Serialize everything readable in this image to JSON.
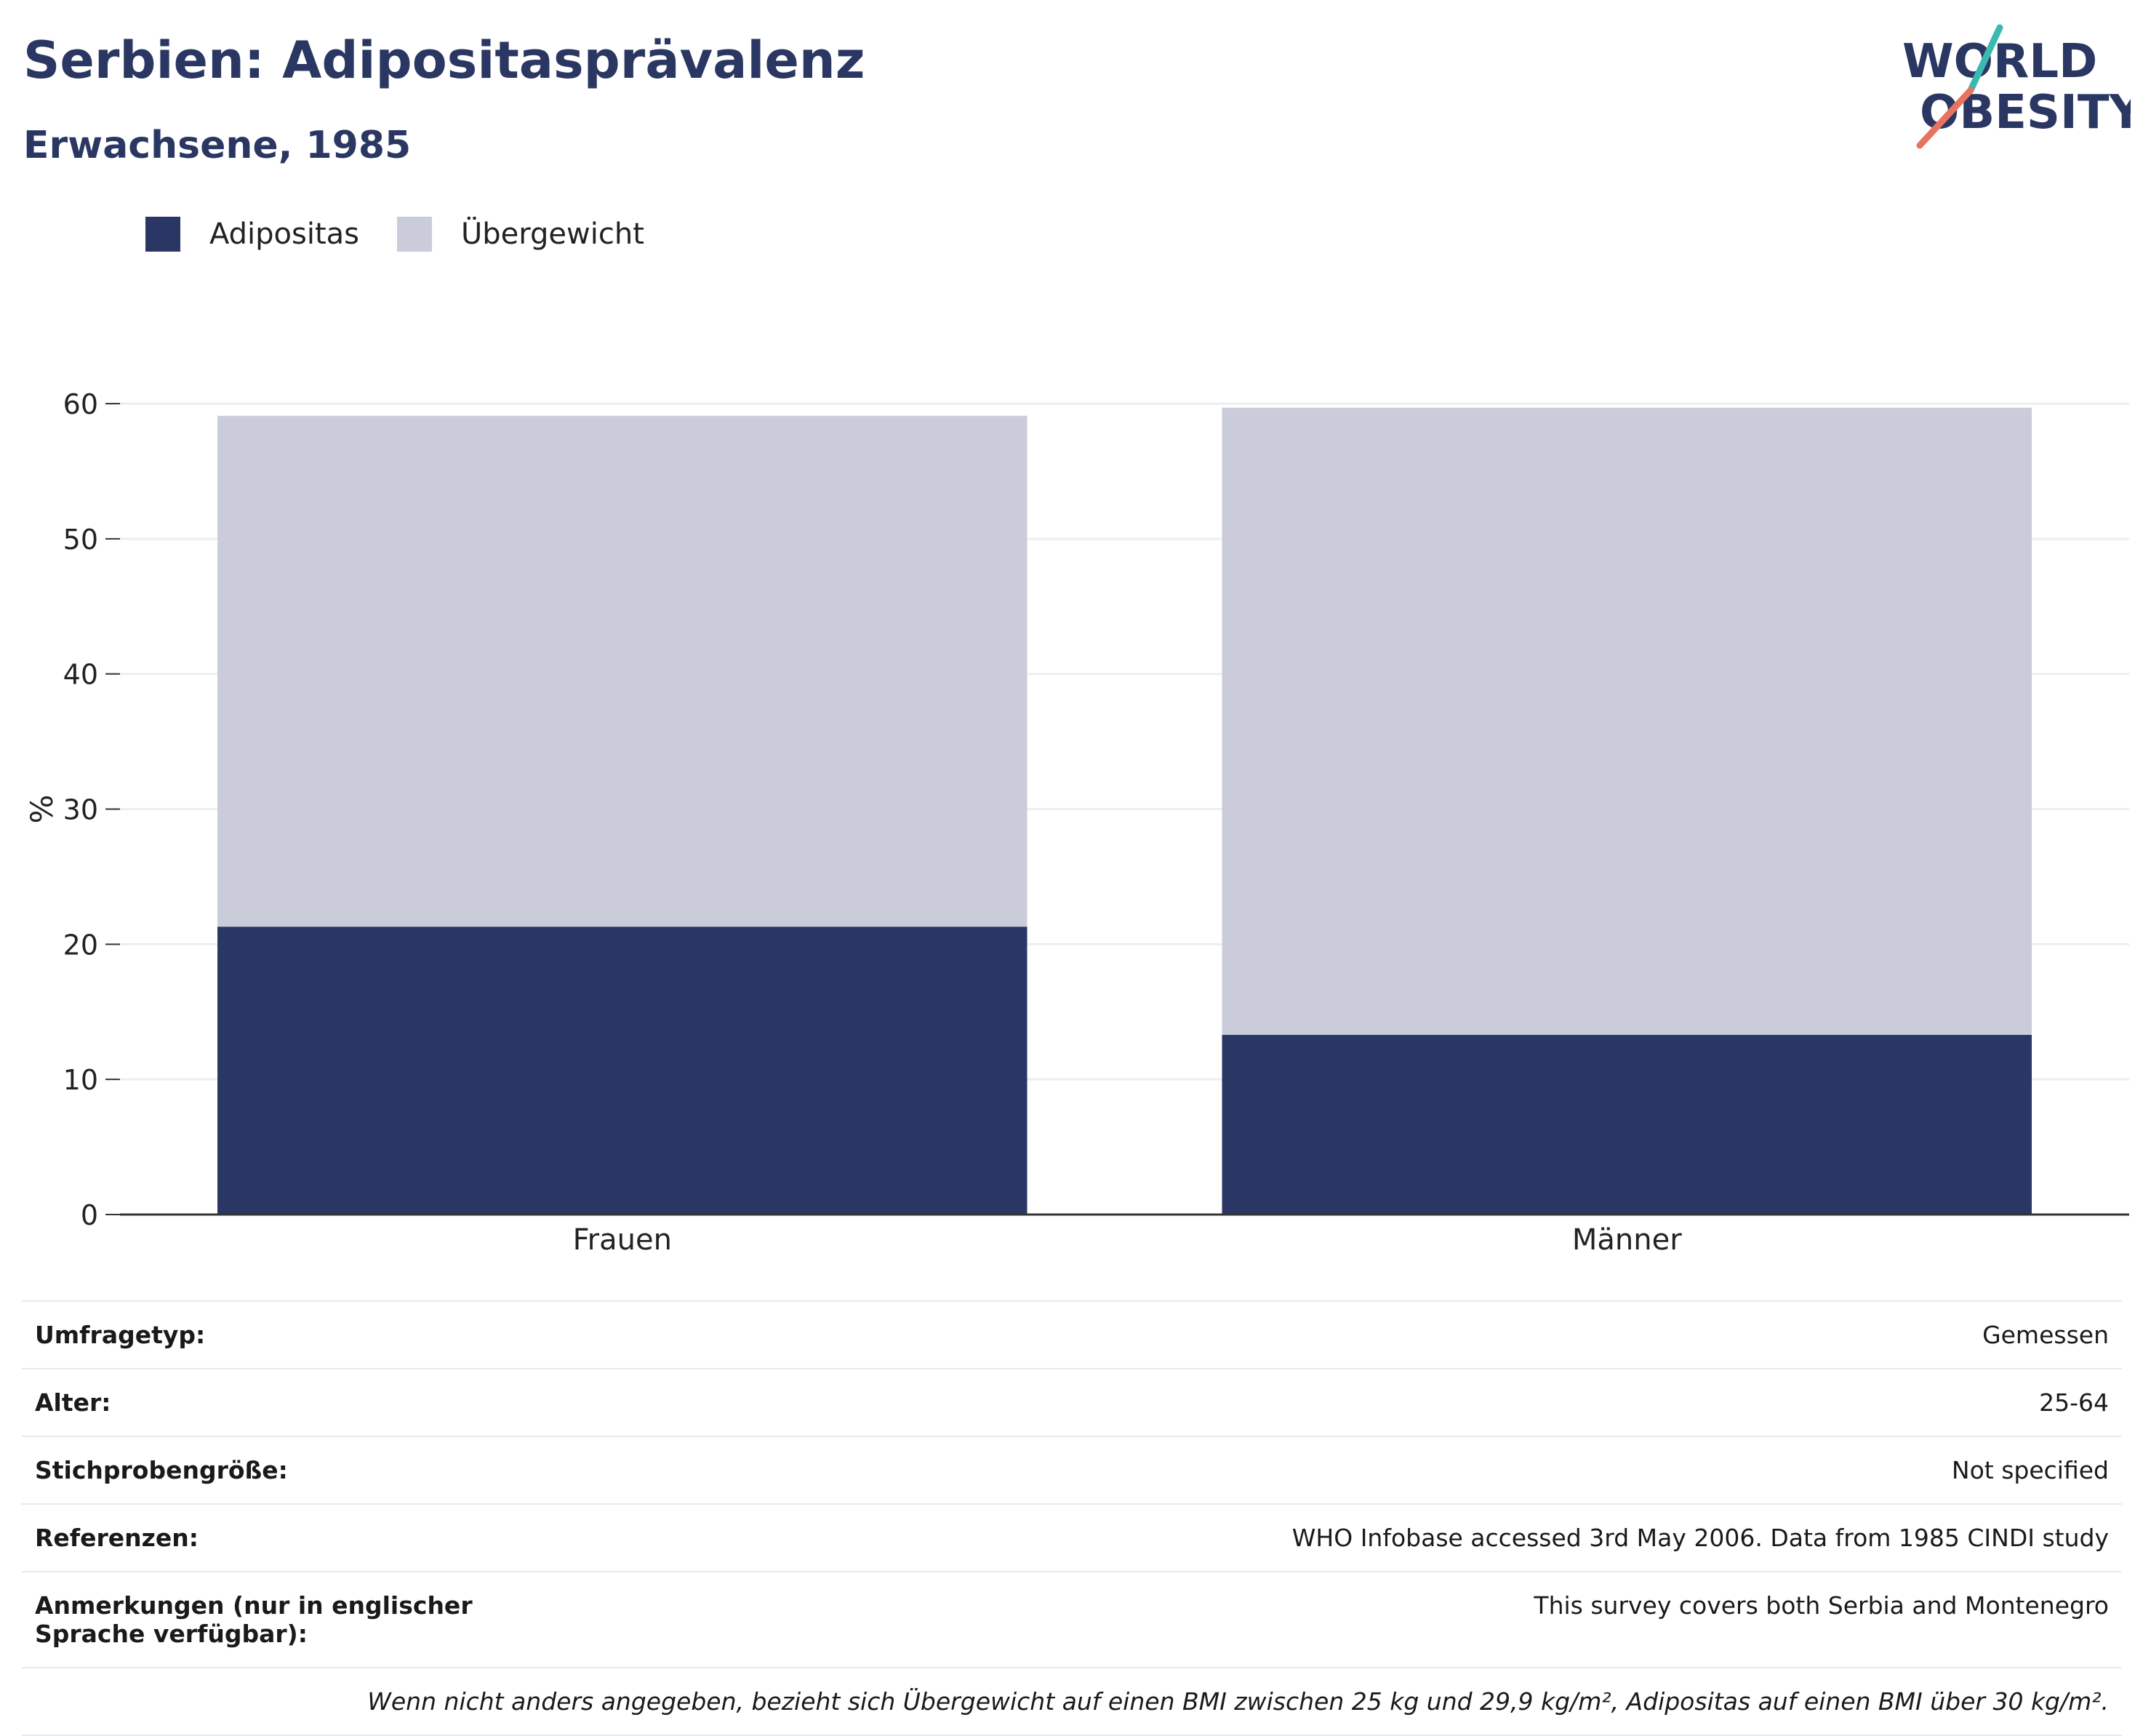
{
  "title": "Serbien: Adipositasprävalenz",
  "subtitle": "Erwachsene, 1985",
  "logo": {
    "line1": "WORLD",
    "line2": "OBESITY",
    "color_text": "#2b3763",
    "color_teal": "#3bb8b0",
    "color_coral": "#e8735f"
  },
  "colors": {
    "obesity": "#2a3663",
    "overweight": "#cacdd9",
    "grid": "#eceef2",
    "axis": "#333333"
  },
  "chart_data": {
    "type": "bar",
    "stacked": true,
    "categories": [
      "Frauen",
      "Männer"
    ],
    "series": [
      {
        "name": "Adipositas",
        "values": [
          21.3,
          13.3
        ]
      },
      {
        "name": "Übergewicht",
        "values": [
          37.8,
          46.4
        ]
      }
    ],
    "ylabel": "%",
    "ylim": [
      0,
      60
    ],
    "yticks": [
      0,
      10,
      20,
      30,
      40,
      50,
      60
    ],
    "grid": true,
    "legend": "top-left"
  },
  "info": [
    {
      "label": "Umfragetyp:",
      "value": "Gemessen"
    },
    {
      "label": "Alter:",
      "value": "25-64"
    },
    {
      "label": "Stichprobengröße:",
      "value": "Not specified"
    },
    {
      "label": "Referenzen:",
      "value": "WHO Infobase accessed 3rd May 2006. Data from 1985 CINDI study"
    },
    {
      "label": "Anmerkungen (nur in englischer Sprache verfügbar):",
      "value": "This survey covers both Serbia and Montenegro"
    }
  ],
  "footnote": "Wenn nicht anders angegeben, bezieht sich Übergewicht auf einen BMI zwischen 25 kg und 29,9 kg/m², Adipositas auf einen BMI über 30 kg/m²."
}
